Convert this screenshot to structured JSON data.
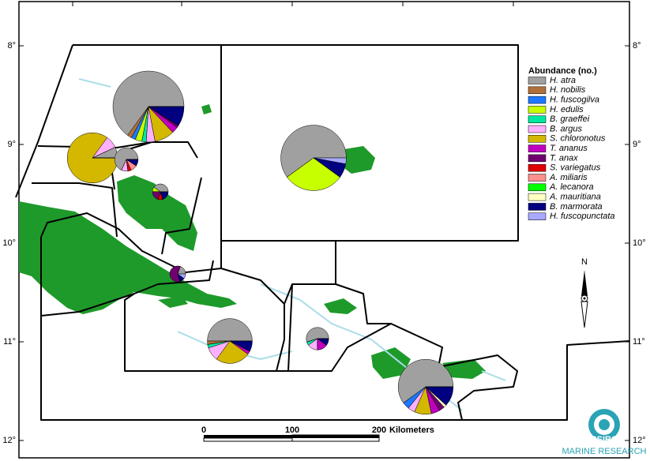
{
  "legend": {
    "title": "Abundance (no.)",
    "items": [
      {
        "name": "H. atra",
        "color": "#a0a0a0"
      },
      {
        "name": "H. nobilis",
        "color": "#b0703a"
      },
      {
        "name": "H. fuscogilva",
        "color": "#1e78ff"
      },
      {
        "name": "H. edulis",
        "color": "#c8ff00"
      },
      {
        "name": "B. graeffei",
        "color": "#00e8a0"
      },
      {
        "name": "B. argus",
        "color": "#ffb0ff"
      },
      {
        "name": "S. chloronotus",
        "color": "#d4b800"
      },
      {
        "name": "T. ananus",
        "color": "#c000c0"
      },
      {
        "name": "T. anax",
        "color": "#700070"
      },
      {
        "name": "S. variegatus",
        "color": "#e00000"
      },
      {
        "name": "A. miliaris",
        "color": "#ff9090"
      },
      {
        "name": "A. lecanora",
        "color": "#00ff00"
      },
      {
        "name": "A. mauritiana",
        "color": "#ffffc0"
      },
      {
        "name": "B. marmorata",
        "color": "#000080"
      },
      {
        "name": "H. fuscopunctata",
        "color": "#a8a8ff"
      }
    ]
  },
  "latitude_labels": [
    "8°",
    "9°",
    "10°",
    "11°",
    "12°"
  ],
  "scale_bar": {
    "labels": [
      "0",
      "100",
      "200"
    ],
    "unit": "Kilometers"
  },
  "north_label": "N",
  "logo": {
    "name": "CSIRO",
    "subtitle": "MARINE RESEARCH"
  },
  "sites": [
    {
      "values": [
        130,
        4,
        4,
        6,
        4,
        8,
        18,
        6,
        2,
        0,
        0,
        0,
        0,
        18,
        0
      ]
    },
    {
      "values": [
        102,
        0,
        0,
        51,
        0,
        0,
        0,
        0,
        0,
        0,
        0,
        0,
        0,
        12,
        5
      ]
    },
    {
      "values": [
        7,
        0,
        0,
        0,
        0,
        8,
        85,
        0,
        0,
        0,
        0,
        0,
        0,
        0,
        0
      ]
    },
    {
      "values": [
        15,
        0,
        0,
        0,
        0,
        2,
        0,
        0,
        0,
        1,
        2,
        0,
        0,
        2,
        0
      ]
    },
    {
      "values": [
        4,
        0,
        0,
        1,
        0,
        0,
        0,
        0,
        2,
        1,
        0,
        0,
        0,
        2,
        0
      ]
    },
    {
      "values": [
        2,
        0,
        0,
        0,
        0,
        0,
        0,
        0,
        6,
        0,
        0,
        0,
        0,
        1,
        1
      ]
    },
    {
      "values": [
        40,
        2,
        0,
        0,
        2,
        8,
        20,
        2,
        0,
        0,
        0,
        0,
        0,
        6,
        0
      ]
    },
    {
      "values": [
        11,
        0,
        0,
        0,
        1,
        3,
        0,
        3,
        0,
        0,
        0,
        0,
        0,
        2,
        0
      ]
    },
    {
      "values": [
        72,
        0,
        5,
        0,
        0,
        5,
        12,
        6,
        4,
        0,
        0,
        0,
        2,
        14,
        0
      ]
    }
  ]
}
